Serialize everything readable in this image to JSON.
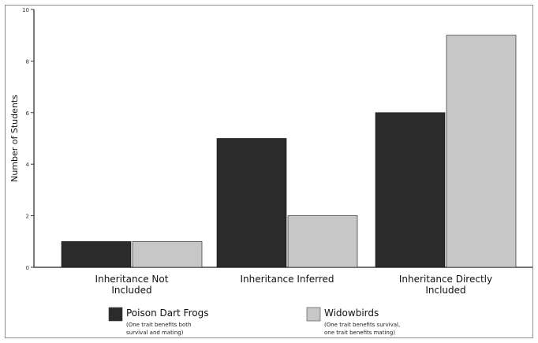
{
  "chart_data": {
    "type": "bar",
    "categories": [
      "Inheritance Not Included",
      "Inheritance Inferred",
      "Inheritance Directly Included"
    ],
    "series": [
      {
        "name": "Poison Dart Frogs",
        "note": "(One trait benefits both survival and mating)",
        "color": "#2b2b2b",
        "values": [
          1,
          5,
          6
        ]
      },
      {
        "name": "Widowbirds",
        "note": "(One trait benefits survival, one trait benefits mating)",
        "color": "#c7c7c7",
        "values": [
          1,
          2,
          9
        ]
      }
    ],
    "ylabel": "Number of Students",
    "ylim": [
      0,
      10
    ],
    "yticks": [
      0,
      2,
      4,
      6,
      8,
      10
    ],
    "grid": false,
    "legend_position": "bottom"
  }
}
